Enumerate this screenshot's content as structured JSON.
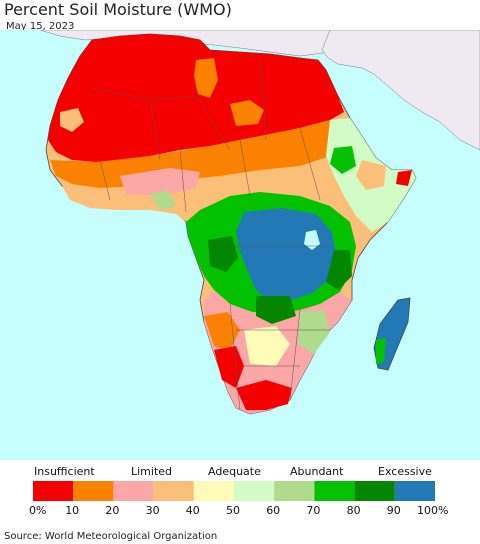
{
  "title": "Percent Soil Moisture (WMO)",
  "date": "May 15, 2023",
  "legend": {
    "categories": [
      "Insufficient",
      "Limited",
      "Adequate",
      "Abundant",
      "Excessive"
    ],
    "ticks": [
      "0%",
      "10",
      "20",
      "30",
      "40",
      "50",
      "60",
      "70",
      "80",
      "90",
      "100%"
    ],
    "colors": [
      "#f50000",
      "#fb8200",
      "#fca7a7",
      "#fbbf79",
      "#fffbb9",
      "#d3fbc6",
      "#b0da8c",
      "#02c200",
      "#038700",
      "#2379b5"
    ]
  },
  "source": "Source: World Meteorological Organization",
  "map_colors": {
    "ocean": "#c6fefe",
    "other_land": "#efeaf1",
    "borders": "#555555"
  }
}
